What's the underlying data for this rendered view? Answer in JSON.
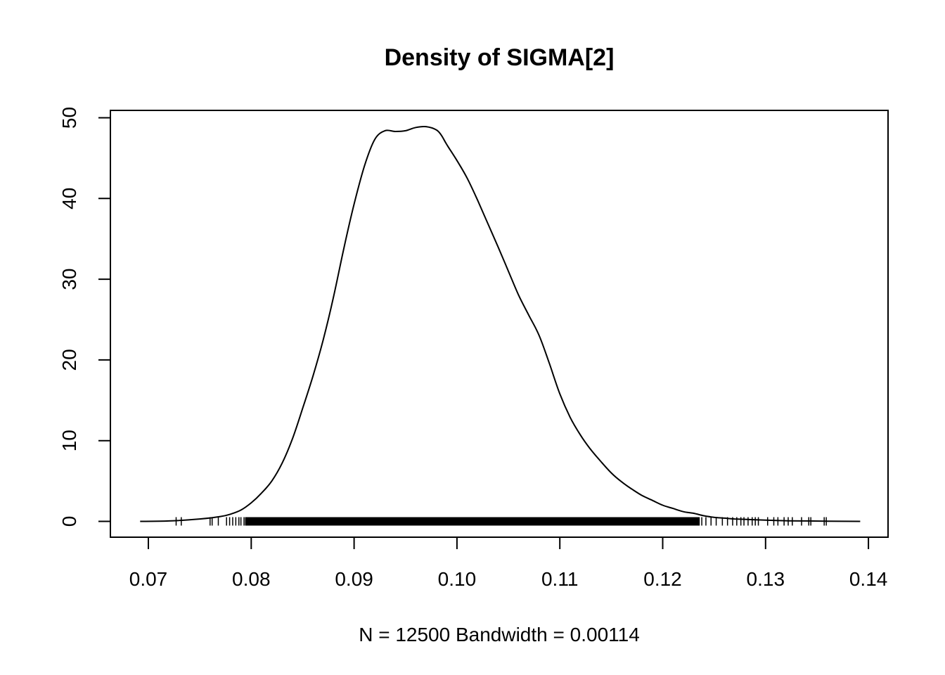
{
  "chart_data": {
    "type": "line",
    "title": "Density of SIGMA[2]",
    "xlabel": "N = 12500   Bandwidth = 0.00114",
    "ylabel": "",
    "xlim": [
      0.069,
      0.139
    ],
    "ylim": [
      0,
      50
    ],
    "x_ticks": [
      0.07,
      0.08,
      0.09,
      0.1,
      0.11,
      0.12,
      0.13,
      0.14
    ],
    "x_tick_labels": [
      "0.07",
      "0.08",
      "0.09",
      "0.10",
      "0.11",
      "0.12",
      "0.13",
      "0.14"
    ],
    "y_ticks": [
      0,
      10,
      20,
      30,
      40,
      50
    ],
    "y_tick_labels": [
      "0",
      "10",
      "20",
      "30",
      "40",
      "50"
    ],
    "grid": false,
    "legend": "none",
    "series": [
      {
        "x": [
          0.0692,
          0.072,
          0.075,
          0.077,
          0.078,
          0.079,
          0.08,
          0.081,
          0.082,
          0.083,
          0.084,
          0.085,
          0.086,
          0.087,
          0.088,
          0.089,
          0.09,
          0.091,
          0.092,
          0.093,
          0.094,
          0.095,
          0.096,
          0.097,
          0.098,
          0.0985,
          0.099,
          0.1,
          0.101,
          0.102,
          0.103,
          0.104,
          0.105,
          0.106,
          0.107,
          0.108,
          0.109,
          0.11,
          0.111,
          0.112,
          0.113,
          0.114,
          0.115,
          0.116,
          0.117,
          0.118,
          0.119,
          0.12,
          0.121,
          0.122,
          0.123,
          0.124,
          0.125,
          0.126,
          0.127,
          0.128,
          0.129,
          0.13,
          0.132,
          0.134,
          0.136,
          0.1392
        ],
        "y": [
          0,
          0.05,
          0.3,
          0.6,
          0.9,
          1.4,
          2.3,
          3.5,
          5.0,
          7.2,
          10.2,
          14.0,
          18.0,
          22.5,
          27.8,
          33.8,
          39.3,
          44.0,
          47.3,
          48.4,
          48.3,
          48.4,
          48.8,
          48.9,
          48.5,
          47.8,
          46.7,
          44.7,
          42.5,
          39.8,
          36.9,
          34.0,
          31.0,
          28.0,
          25.5,
          23.0,
          19.5,
          15.8,
          12.9,
          10.7,
          8.9,
          7.4,
          6.0,
          4.9,
          4.0,
          3.2,
          2.6,
          2.0,
          1.6,
          1.2,
          1.0,
          0.7,
          0.5,
          0.4,
          0.3,
          0.25,
          0.2,
          0.15,
          0.08,
          0.05,
          0.02,
          0
        ]
      }
    ],
    "rug": [
      0.0727,
      0.0732,
      0.076,
      0.0762,
      0.0768,
      0.0776,
      0.0779,
      0.0782,
      0.0785,
      0.0788,
      0.079,
      0.0793,
      0.1238,
      0.1242,
      0.1247,
      0.1252,
      0.1258,
      0.1263,
      0.1268,
      0.1272,
      0.1276,
      0.1279,
      0.1283,
      0.1287,
      0.129,
      0.1293,
      0.1302,
      0.1308,
      0.1312,
      0.1318,
      0.1322,
      0.1326,
      0.1335,
      0.1342,
      0.1344,
      0.1357,
      0.1359
    ]
  }
}
